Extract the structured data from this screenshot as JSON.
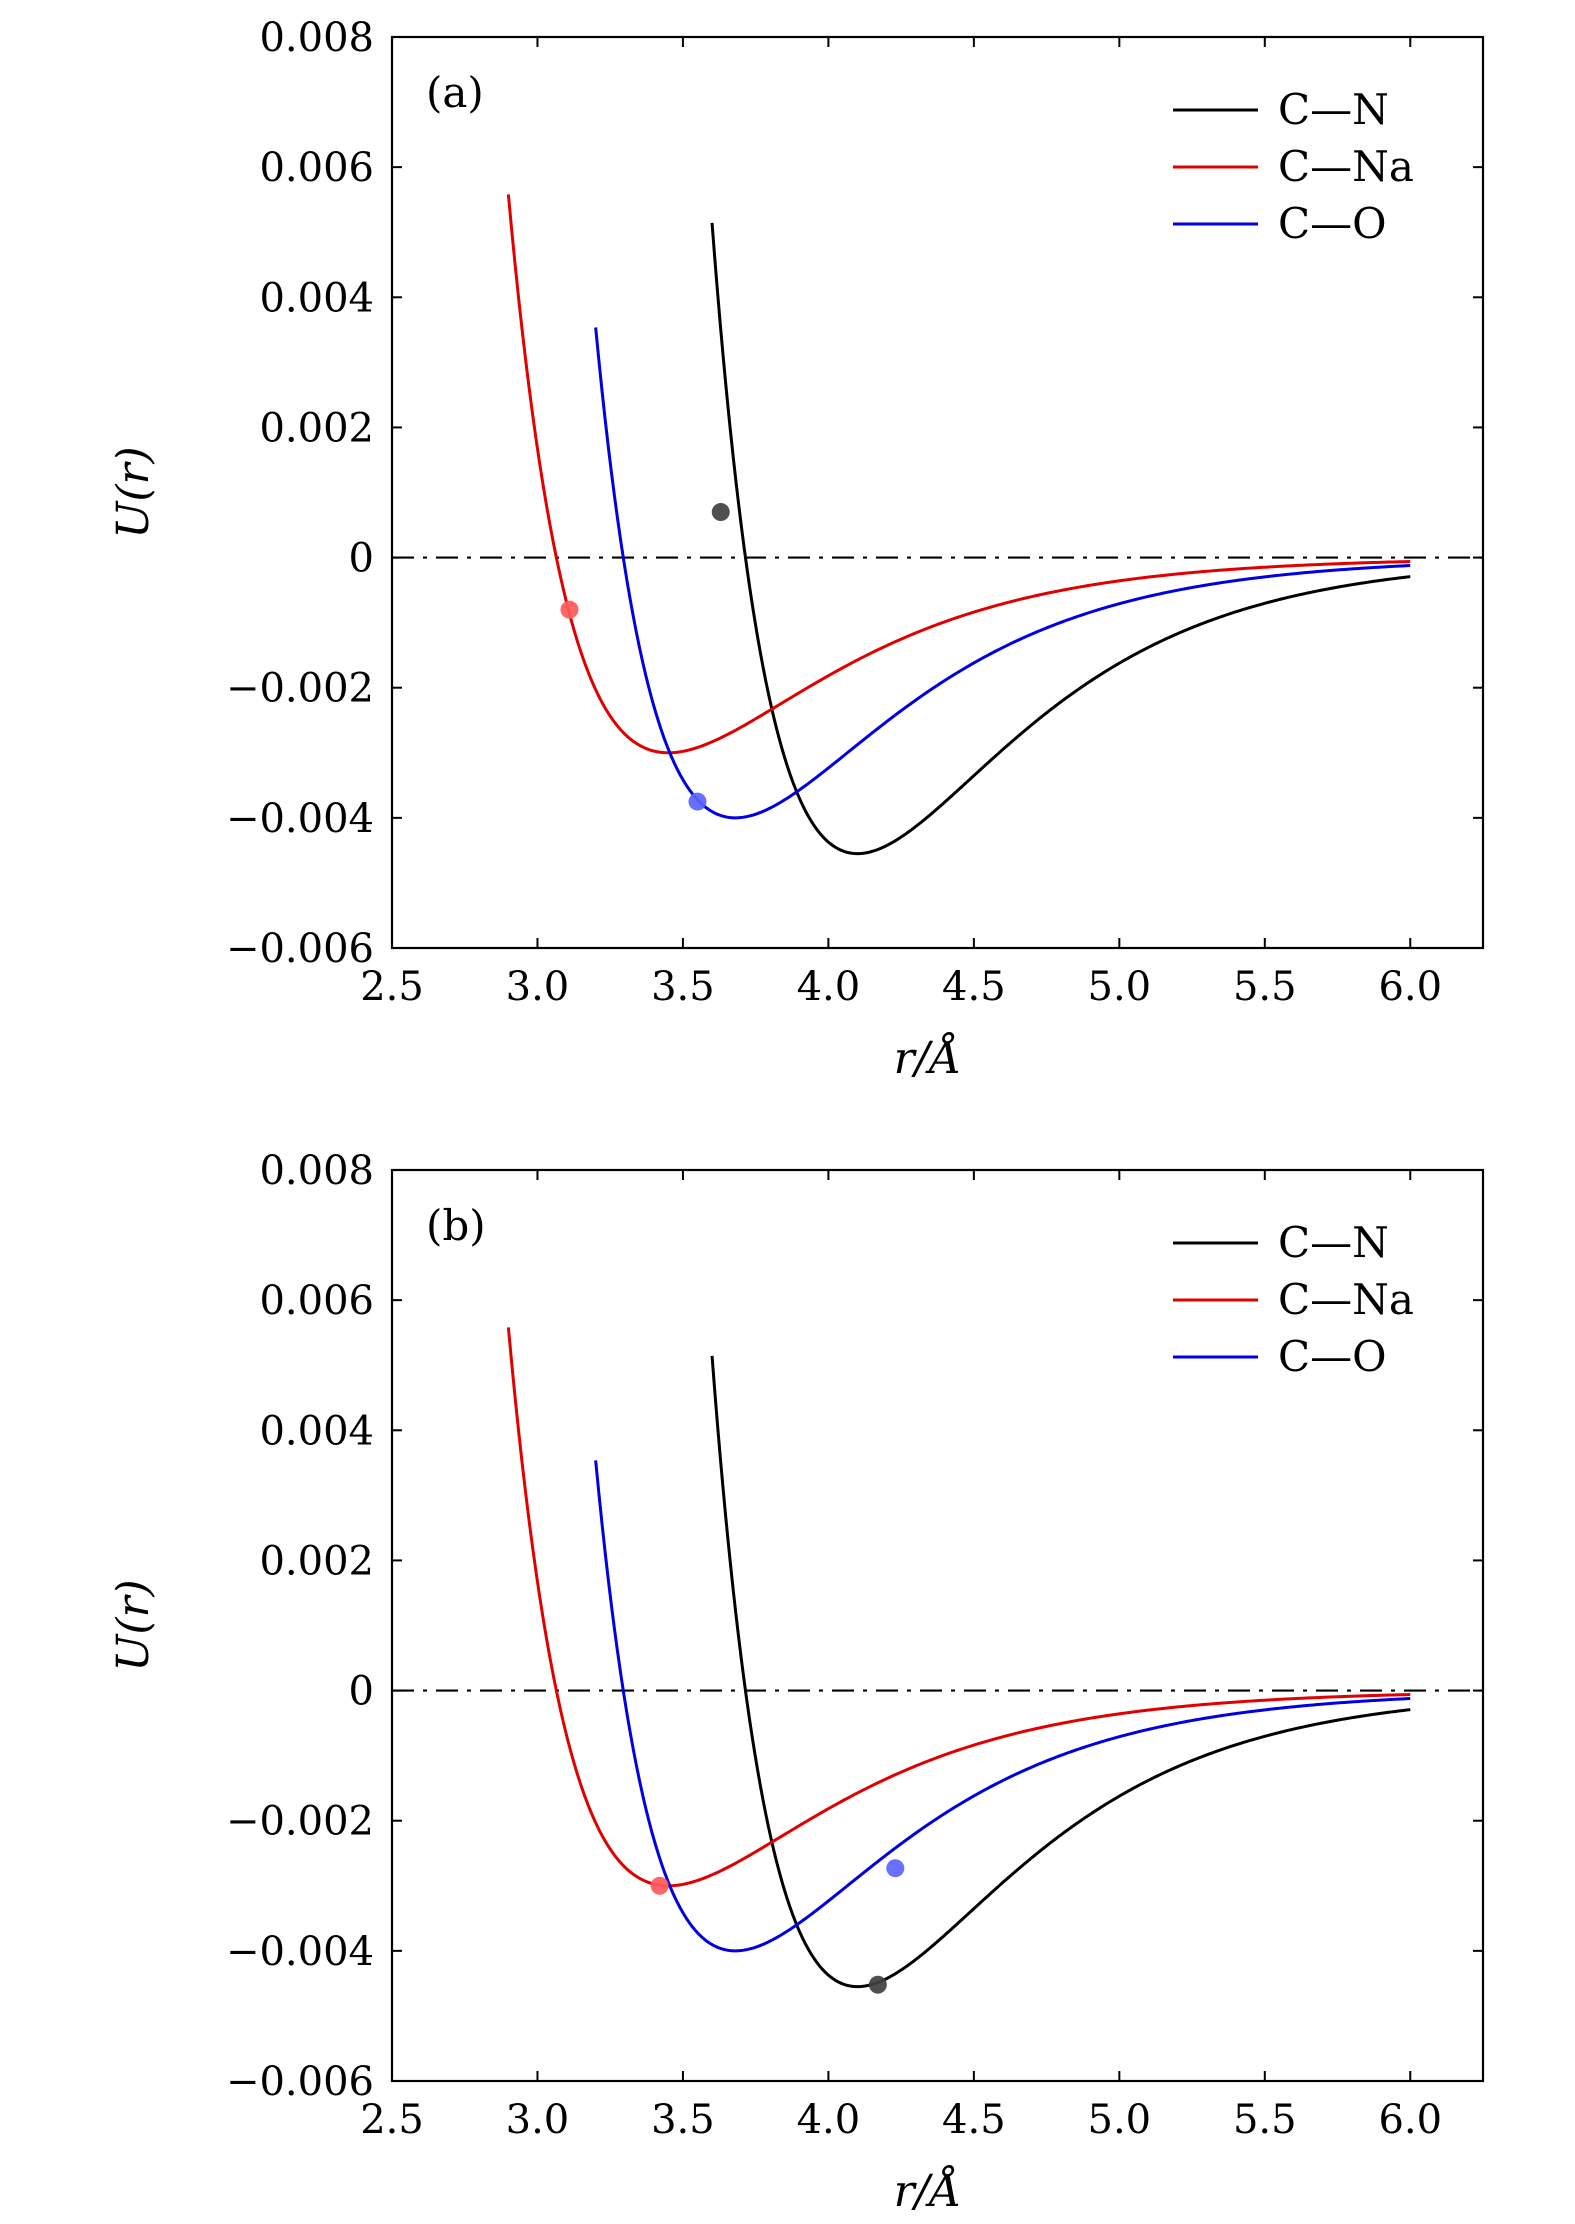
{
  "chart_data": [
    {
      "type": "line",
      "panel_label": "(a)",
      "xlabel": "r/Å",
      "ylabel": "U(r)",
      "xlim": [
        2.5,
        6.25
      ],
      "ylim": [
        -0.006,
        0.008
      ],
      "xticks": [
        2.5,
        3.0,
        3.5,
        4.0,
        4.5,
        5.0,
        5.5,
        6.0
      ],
      "xtick_labels": [
        "2.5",
        "3.0",
        "3.5",
        "4.0",
        "4.5",
        "5.0",
        "5.5",
        "6.0"
      ],
      "yticks": [
        0.008,
        0.006,
        0.004,
        0.002,
        0,
        -0.002,
        -0.004,
        -0.006
      ],
      "ytick_labels": [
        "0.008",
        "0.006",
        "0.004",
        "0.002",
        "0",
        "−0.002",
        "−0.004",
        "−0.006"
      ],
      "reference_line": {
        "y": 0,
        "style": "dash-dot"
      },
      "legend_position": "top-right",
      "series": [
        {
          "name": "C—N",
          "color": "#000000",
          "epsilon": 0.00455,
          "r_min": 4.1,
          "r_start": 3.6,
          "r_end": 6.0
        },
        {
          "name": "C—Na",
          "color": "#e00000",
          "epsilon": 0.003,
          "r_min": 3.45,
          "r_start": 2.9,
          "r_end": 6.0
        },
        {
          "name": "C—O",
          "color": "#0000e0",
          "epsilon": 0.004,
          "r_min": 3.68,
          "r_start": 3.2,
          "r_end": 6.0
        }
      ],
      "markers": [
        {
          "series": "C—N",
          "x": 3.63,
          "y": 0.0007,
          "color": "#404040"
        },
        {
          "series": "C—Na",
          "x": 3.11,
          "y": -0.0008,
          "color": "#ff5a5a"
        },
        {
          "series": "C—O",
          "x": 3.55,
          "y": -0.00375,
          "color": "#5a64ff"
        }
      ]
    },
    {
      "type": "line",
      "panel_label": "(b)",
      "xlabel": "r/Å",
      "ylabel": "U(r)",
      "xlim": [
        2.5,
        6.25
      ],
      "ylim": [
        -0.006,
        0.008
      ],
      "xticks": [
        2.5,
        3.0,
        3.5,
        4.0,
        4.5,
        5.0,
        5.5,
        6.0
      ],
      "xtick_labels": [
        "2.5",
        "3.0",
        "3.5",
        "4.0",
        "4.5",
        "5.0",
        "5.5",
        "6.0"
      ],
      "yticks": [
        0.008,
        0.006,
        0.004,
        0.002,
        0,
        -0.002,
        -0.004,
        -0.006
      ],
      "ytick_labels": [
        "0.008",
        "0.006",
        "0.004",
        "0.002",
        "0",
        "−0.002",
        "−0.004",
        "−0.006"
      ],
      "reference_line": {
        "y": 0,
        "style": "dash-dot"
      },
      "legend_position": "top-right",
      "series": [
        {
          "name": "C—N",
          "color": "#000000",
          "epsilon": 0.00455,
          "r_min": 4.1,
          "r_start": 3.6,
          "r_end": 6.0
        },
        {
          "name": "C—Na",
          "color": "#e00000",
          "epsilon": 0.003,
          "r_min": 3.45,
          "r_start": 2.9,
          "r_end": 6.0
        },
        {
          "name": "C—O",
          "color": "#0000e0",
          "epsilon": 0.004,
          "r_min": 3.68,
          "r_start": 3.2,
          "r_end": 6.0
        }
      ],
      "markers": [
        {
          "series": "C—N",
          "x": 4.17,
          "y": -0.00452,
          "color": "#404040"
        },
        {
          "series": "C—Na",
          "x": 3.42,
          "y": -0.003,
          "color": "#ff5a5a"
        },
        {
          "series": "C—O",
          "x": 4.23,
          "y": -0.00273,
          "color": "#5a64ff"
        }
      ]
    }
  ]
}
